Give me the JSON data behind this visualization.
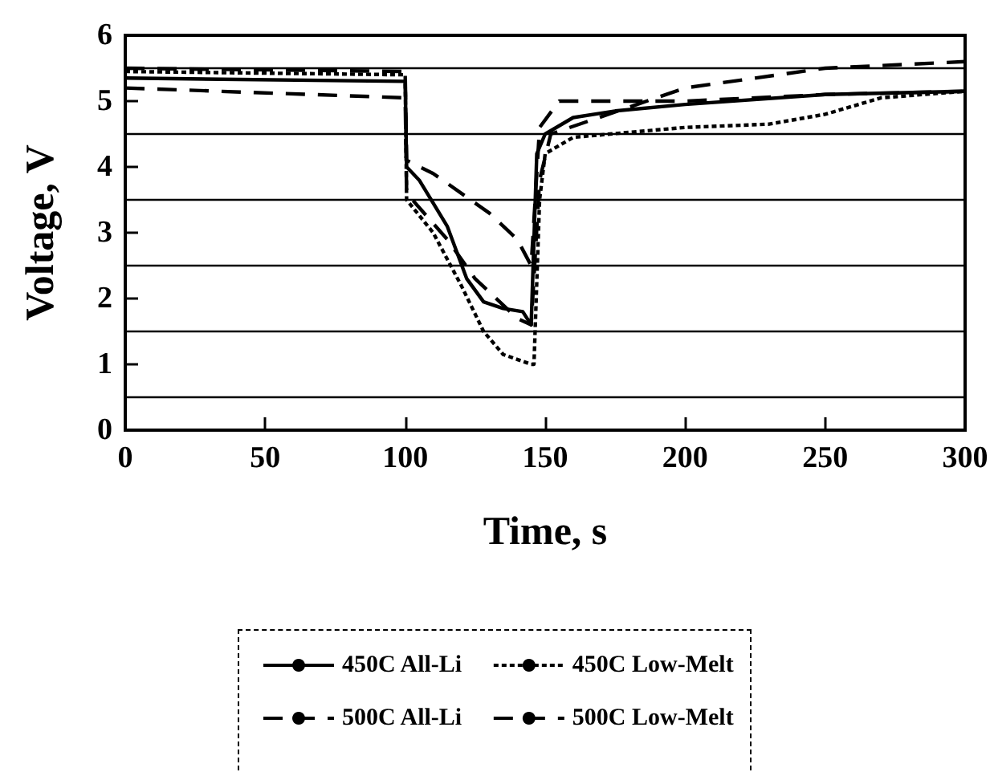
{
  "chart_data": {
    "type": "line",
    "xlabel": "Time, s",
    "ylabel": "Voltage, V",
    "xlim": [
      0,
      300
    ],
    "xticks": [
      0,
      50,
      100,
      150,
      200,
      250,
      300
    ],
    "ylim": [
      0,
      6
    ],
    "yticks": [
      0,
      1,
      2,
      3,
      4,
      5,
      6
    ],
    "grid": "y",
    "legend": "bottom",
    "marker": "none",
    "series": [
      {
        "name": "450C All-Li",
        "color": "#000000",
        "line_style": "solid",
        "x": [
          0,
          100,
          100.5,
          105,
          115,
          122,
          128,
          135,
          142,
          145,
          147,
          150,
          160,
          175,
          200,
          250,
          300
        ],
        "values": [
          5.35,
          5.3,
          4.0,
          3.8,
          3.1,
          2.3,
          1.95,
          1.85,
          1.8,
          1.6,
          4.2,
          4.5,
          4.75,
          4.85,
          4.95,
          5.1,
          5.15
        ]
      },
      {
        "name": "450C Low-Melt",
        "color": "#000000",
        "line_style": "dotted",
        "x": [
          0,
          100,
          100.5,
          110,
          120,
          128,
          135,
          145,
          146,
          148,
          150,
          160,
          200,
          230,
          250,
          270,
          300
        ],
        "values": [
          5.45,
          5.4,
          3.5,
          3.0,
          2.2,
          1.5,
          1.15,
          1.0,
          1.0,
          3.5,
          4.2,
          4.45,
          4.6,
          4.65,
          4.8,
          5.05,
          5.15
        ]
      },
      {
        "name": "500C All-Li",
        "color": "#000000",
        "line_style": "dashed",
        "x": [
          0,
          100,
          100.5,
          110,
          130,
          140,
          145,
          148,
          155,
          175,
          200,
          250,
          300
        ],
        "values": [
          5.5,
          5.45,
          4.1,
          3.9,
          3.3,
          2.9,
          2.5,
          4.6,
          5.0,
          5.0,
          5.0,
          5.1,
          5.15
        ]
      },
      {
        "name": "500C Low-Melt",
        "color": "#000000",
        "line_style": "dashed",
        "x": [
          0,
          100,
          100.5,
          115,
          125,
          140,
          145,
          148,
          152,
          200,
          250,
          300
        ],
        "values": [
          5.2,
          5.05,
          3.6,
          2.9,
          2.3,
          1.7,
          1.6,
          3.8,
          4.5,
          5.2,
          5.5,
          5.6
        ]
      }
    ]
  }
}
